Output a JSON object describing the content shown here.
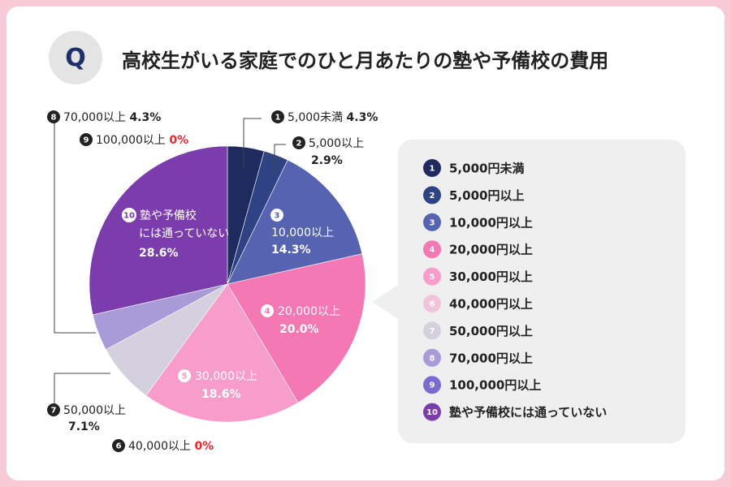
{
  "header": {
    "badge": "Q",
    "title": "高校生がいる家庭でのひと月あたりの塾や予備校の費用"
  },
  "chart_data": {
    "type": "pie",
    "title": "高校生がいる家庭でのひと月あたりの塾や予備校の費用",
    "unit": "%",
    "slices": [
      {
        "num": "1",
        "label": "5,000未満",
        "legend": "5,000円未満",
        "value": 4.3,
        "value_label": "4.3%",
        "color": "#1f2a5e"
      },
      {
        "num": "2",
        "label": "5,000以上",
        "legend": "5,000円以上",
        "value": 2.9,
        "value_label": "2.9%",
        "color": "#2f4384"
      },
      {
        "num": "3",
        "label": "10,000以上",
        "legend": "10,000円以上",
        "value": 14.3,
        "value_label": "14.3%",
        "color": "#5663b0"
      },
      {
        "num": "4",
        "label": "20,000以上",
        "legend": "20,000円以上",
        "value": 20.0,
        "value_label": "20.0%",
        "color": "#f478b3"
      },
      {
        "num": "5",
        "label": "30,000以上",
        "legend": "30,000円以上",
        "value": 18.6,
        "value_label": "18.6%",
        "color": "#f79ccb"
      },
      {
        "num": "6",
        "label": "40,000以上",
        "legend": "40,000円以上",
        "value": 0,
        "value_label": "0%",
        "color": "#f1c3dd"
      },
      {
        "num": "7",
        "label": "50,000以上",
        "legend": "50,000円以上",
        "value": 7.1,
        "value_label": "7.1%",
        "color": "#d4d0dd"
      },
      {
        "num": "8",
        "label": "70,000以上",
        "legend": "70,000円以上",
        "value": 4.3,
        "value_label": "4.3%",
        "color": "#a99bd8"
      },
      {
        "num": "9",
        "label": "100,000以上",
        "legend": "100,000円以上",
        "value": 0,
        "value_label": "0%",
        "color": "#7b6bd0"
      },
      {
        "num": "10",
        "label_lines": [
          "塾や予備校",
          "には通っていない"
        ],
        "legend": "塾や予備校には通っていない",
        "value": 28.6,
        "value_label": "28.6%",
        "color": "#7a3dab"
      }
    ]
  }
}
